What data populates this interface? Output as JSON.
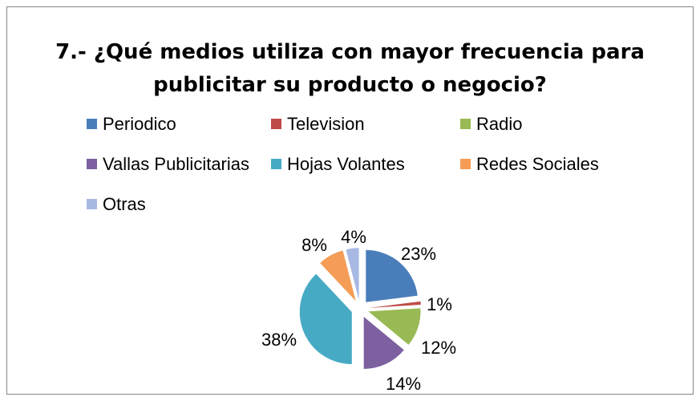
{
  "chart_data": {
    "type": "pie",
    "title_lines": [
      "7.- ¿Qué medios utiliza con mayor frecuencia para",
      "publicitar su producto o negocio?"
    ],
    "legend_position": "top",
    "exploded": true,
    "slices": [
      {
        "label": "Periodico",
        "value": 23,
        "data_label": "23%",
        "color": "#4A7EBB"
      },
      {
        "label": "Television",
        "value": 1,
        "data_label": "1%",
        "color": "#BE4B48"
      },
      {
        "label": "Radio",
        "value": 12,
        "data_label": "12%",
        "color": "#98B954"
      },
      {
        "label": "Vallas Publicitarias",
        "value": 14,
        "data_label": "14%",
        "color": "#7D60A0"
      },
      {
        "label": "Hojas Volantes",
        "value": 38,
        "data_label": "38%",
        "color": "#46AAC4"
      },
      {
        "label": "Redes Sociales",
        "value": 8,
        "data_label": "8%",
        "color": "#F59D56"
      },
      {
        "label": "Otras",
        "value": 4,
        "data_label": "4%",
        "color": "#A7B9E3"
      }
    ]
  }
}
